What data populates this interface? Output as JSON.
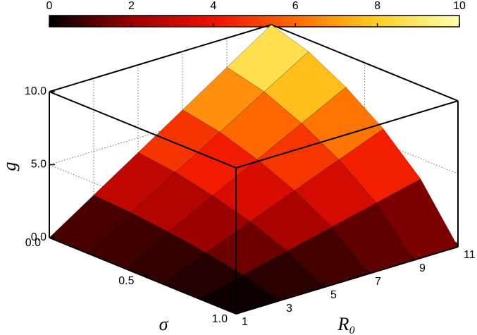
{
  "chart_data": {
    "type": "surface",
    "xlabel": "R₀",
    "ylabel": "σ",
    "zlabel": "g",
    "x": [
      1,
      3,
      5,
      7,
      9,
      11
    ],
    "y": [
      0,
      0.2,
      0.4,
      0.6,
      0.8,
      1.0
    ],
    "z": [
      [
        0,
        2,
        4,
        6,
        8,
        10
      ],
      [
        0,
        1.84,
        3.68,
        5.52,
        7.36,
        9.2
      ],
      [
        0,
        1.56,
        3.12,
        4.68,
        6.24,
        7.8
      ],
      [
        0,
        1.2,
        2.4,
        3.6,
        4.8,
        6
      ],
      [
        0,
        0.72,
        1.44,
        2.16,
        2.88,
        3.6
      ],
      [
        0,
        0,
        0,
        0,
        0,
        0
      ]
    ],
    "xlim": [
      1,
      11
    ],
    "xticks": [
      1,
      3,
      5,
      7,
      9,
      11
    ],
    "ylim": [
      0,
      1
    ],
    "yticks": [
      {
        "value": 0,
        "label": "0.0"
      },
      {
        "value": 0.5,
        "label": "0.5"
      },
      {
        "value": 1,
        "label": "1.0"
      }
    ],
    "zlim": [
      0,
      10
    ],
    "zticks": [
      {
        "value": 0,
        "label": "0.0"
      },
      {
        "value": 5,
        "label": "5.0"
      },
      {
        "value": 10,
        "label": "10.0"
      }
    ],
    "colormap": [
      "#000000",
      "#9a0000",
      "#f01000",
      "#ff6a00",
      "#ffd020",
      "#ffffb0"
    ],
    "clim": [
      0,
      10
    ],
    "colorbar_ticks": [
      0,
      2,
      4,
      6,
      8,
      10
    ],
    "grid": true
  }
}
